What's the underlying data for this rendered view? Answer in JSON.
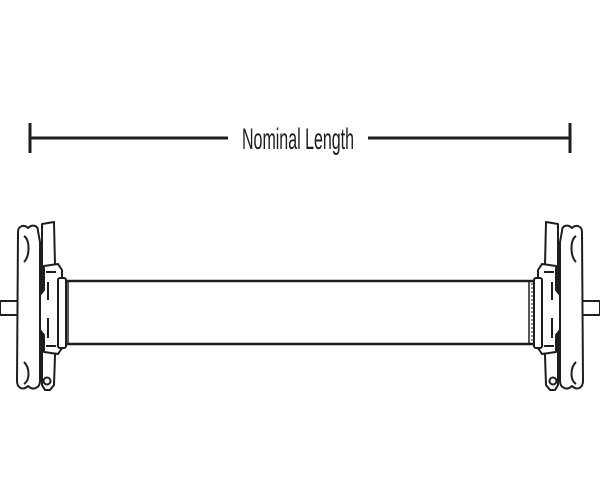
{
  "dimension": {
    "label": "Nominal Length"
  },
  "colors": {
    "line": "#1e1e1e",
    "background": "#ffffff"
  }
}
